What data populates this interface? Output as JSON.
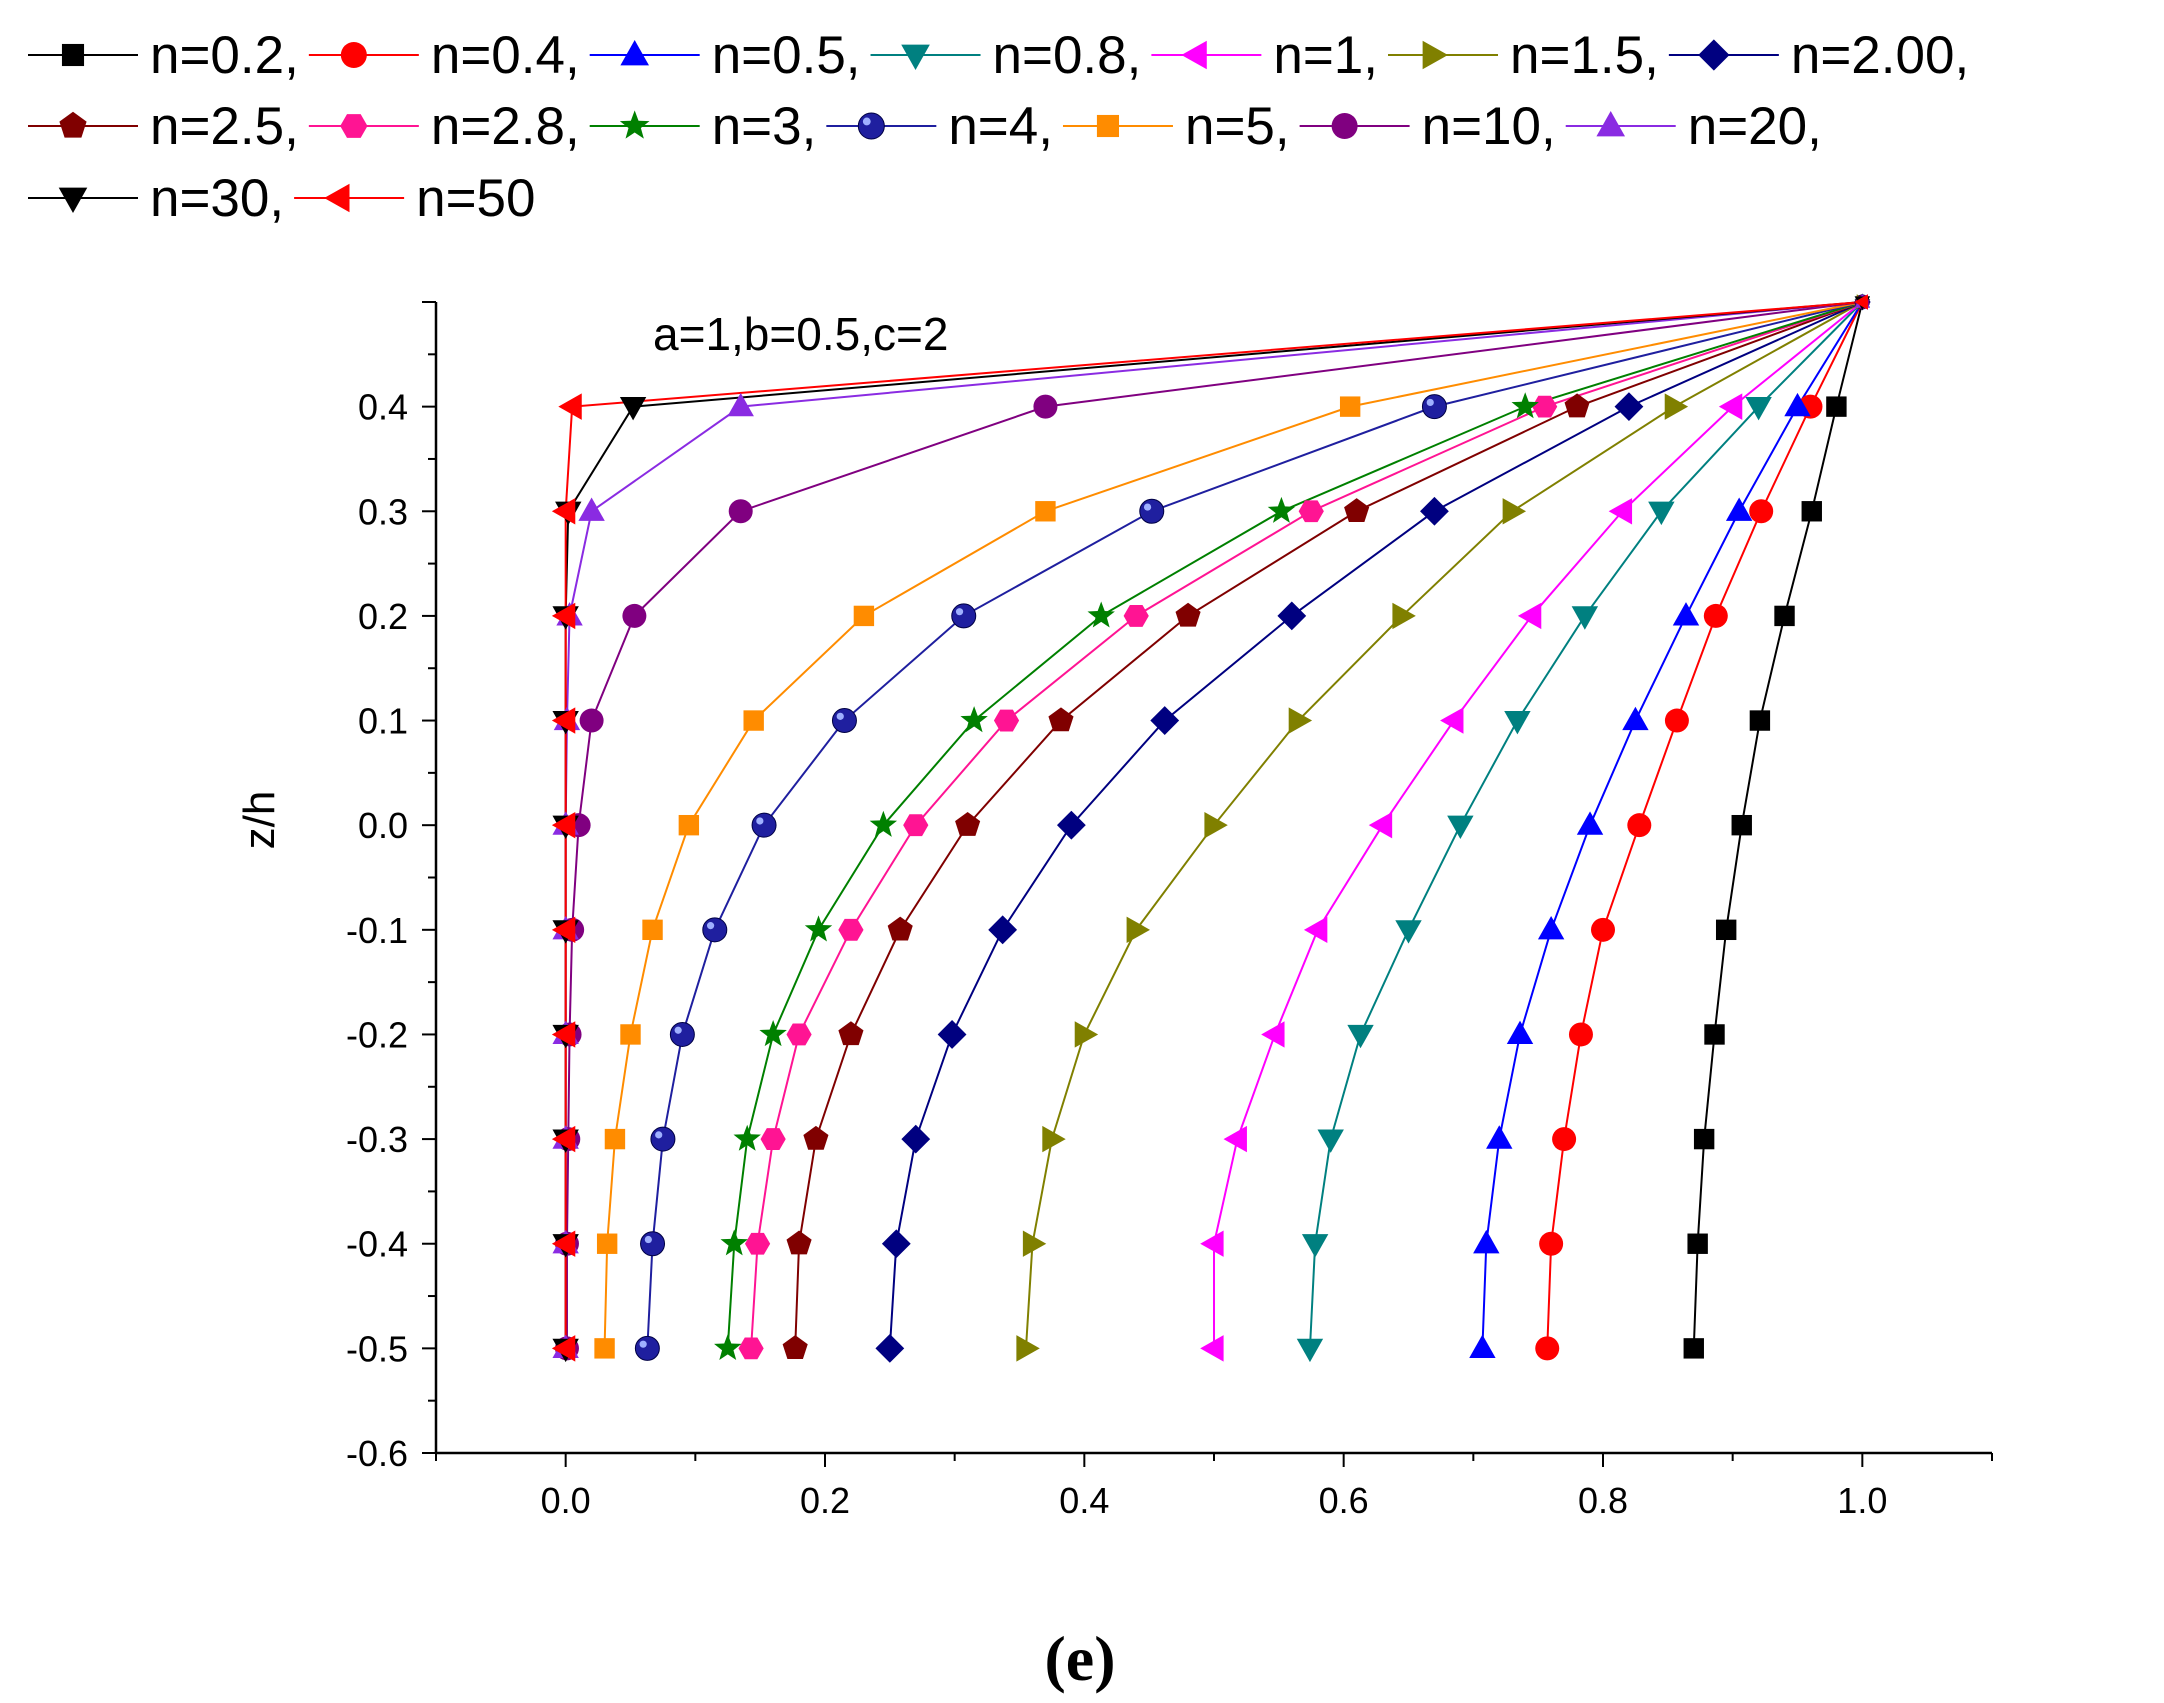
{
  "chart_data": {
    "type": "line",
    "annotation": "a=1,b=0.5,c=2",
    "caption": "(e)",
    "xlabel": "",
    "ylabel": "z/h",
    "xlim": [
      -0.1,
      1.1
    ],
    "ylim": [
      -0.6,
      0.5
    ],
    "xticks": [
      0.0,
      0.2,
      0.4,
      0.6,
      0.8,
      1.0
    ],
    "xtick_labels": [
      "0.0",
      "0.2",
      "0.4",
      "0.6",
      "0.8",
      "1.0"
    ],
    "yticks": [
      0.4,
      0.3,
      0.2,
      0.1,
      0.0,
      -0.1,
      -0.2,
      -0.3,
      -0.4,
      -0.5,
      -0.6
    ],
    "ytick_labels": [
      "0.4",
      "0.3",
      "0.2",
      "0.1",
      "0.0",
      "-0.1",
      "-0.2",
      "-0.3",
      "-0.4",
      "-0.5",
      "-0.6"
    ],
    "y": [
      -0.5,
      -0.4,
      -0.3,
      -0.2,
      -0.1,
      0.0,
      0.1,
      0.2,
      0.3,
      0.4,
      0.5
    ],
    "series": [
      {
        "name": "n=0.2,",
        "color": "#000000",
        "marker": "square",
        "x": [
          0.87,
          0.873,
          0.878,
          0.886,
          0.895,
          0.907,
          0.921,
          0.94,
          0.961,
          0.98,
          1.0
        ]
      },
      {
        "name": "n=0.4,",
        "color": "#ff0000",
        "marker": "circle",
        "x": [
          0.757,
          0.76,
          0.77,
          0.783,
          0.8,
          0.828,
          0.857,
          0.887,
          0.922,
          0.96,
          1.0
        ]
      },
      {
        "name": "n=0.5,",
        "color": "#0000ff",
        "marker": "triangle-up",
        "x": [
          0.707,
          0.71,
          0.72,
          0.736,
          0.76,
          0.79,
          0.825,
          0.864,
          0.905,
          0.95,
          1.0
        ]
      },
      {
        "name": "n=0.8,",
        "color": "#008080",
        "marker": "triangle-down",
        "x": [
          0.574,
          0.578,
          0.59,
          0.613,
          0.65,
          0.69,
          0.734,
          0.786,
          0.845,
          0.92,
          1.0
        ]
      },
      {
        "name": "n=1,",
        "color": "#ff00ff",
        "marker": "triangle-left",
        "x": [
          0.5,
          0.5,
          0.518,
          0.547,
          0.58,
          0.63,
          0.685,
          0.745,
          0.815,
          0.9,
          1.0
        ]
      },
      {
        "name": "n=1.5,",
        "color": "#808000",
        "marker": "triangle-right",
        "x": [
          0.355,
          0.36,
          0.375,
          0.4,
          0.44,
          0.5,
          0.565,
          0.645,
          0.73,
          0.855,
          1.0
        ]
      },
      {
        "name": "n=2.00,",
        "color": "#000080",
        "marker": "diamond",
        "x": [
          0.25,
          0.255,
          0.27,
          0.298,
          0.337,
          0.39,
          0.462,
          0.56,
          0.67,
          0.82,
          1.0
        ]
      },
      {
        "name": "n=2.5,",
        "color": "#800000",
        "marker": "pentagon",
        "x": [
          0.177,
          0.18,
          0.193,
          0.22,
          0.258,
          0.31,
          0.382,
          0.48,
          0.61,
          0.78,
          1.0
        ]
      },
      {
        "name": "n=2.8,",
        "color": "#ff1493",
        "marker": "hexagon",
        "x": [
          0.143,
          0.148,
          0.16,
          0.18,
          0.22,
          0.27,
          0.34,
          0.44,
          0.575,
          0.755,
          1.0
        ]
      },
      {
        "name": "n=3,",
        "color": "#008000",
        "marker": "star",
        "x": [
          0.125,
          0.13,
          0.14,
          0.16,
          0.195,
          0.245,
          0.315,
          0.413,
          0.552,
          0.74,
          1.0
        ]
      },
      {
        "name": "n=4,",
        "color": "#1f1f9f",
        "marker": "sphere",
        "x": [
          0.063,
          0.067,
          0.075,
          0.09,
          0.115,
          0.153,
          0.215,
          0.307,
          0.452,
          0.67,
          1.0
        ]
      },
      {
        "name": "n=5,",
        "color": "#ff8c00",
        "marker": "square",
        "x": [
          0.03,
          0.032,
          0.038,
          0.05,
          0.067,
          0.095,
          0.145,
          0.23,
          0.37,
          0.605,
          1.0
        ]
      },
      {
        "name": "n=10,",
        "color": "#800080",
        "marker": "circle",
        "x": [
          0.001,
          0.001,
          0.002,
          0.003,
          0.005,
          0.01,
          0.02,
          0.053,
          0.135,
          0.37,
          1.0
        ]
      },
      {
        "name": "n=20,",
        "color": "#8a2be2",
        "marker": "triangle-up",
        "x": [
          0.0,
          0.0,
          0.0,
          0.0,
          0.0,
          0.0,
          0.001,
          0.003,
          0.02,
          0.135,
          1.0
        ]
      },
      {
        "name": "n=30,",
        "color": "#000000",
        "marker": "triangle-down",
        "x": [
          0.0,
          0.0,
          0.0,
          0.0,
          0.0,
          0.0,
          0.0,
          0.0,
          0.002,
          0.052,
          1.0
        ]
      },
      {
        "name": "n=50",
        "color": "#ff0000",
        "marker": "triangle-left",
        "x": [
          0.0,
          0.0,
          0.0,
          0.0,
          0.0,
          0.0,
          0.0,
          0.0,
          0.0,
          0.005,
          1.0
        ]
      }
    ]
  }
}
